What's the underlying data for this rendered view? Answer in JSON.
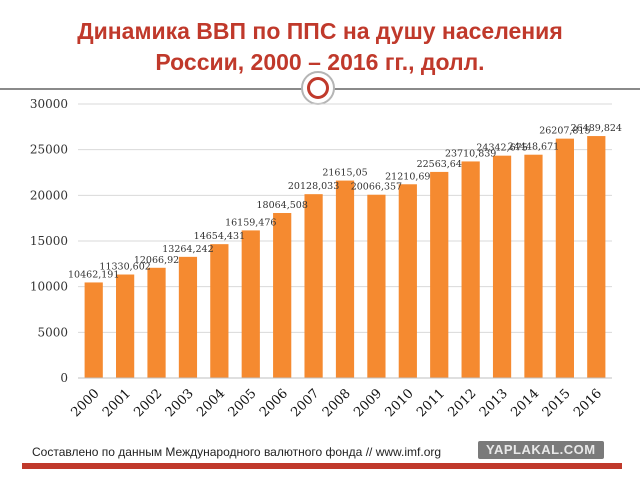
{
  "title": {
    "line1": "Динамика ВВП по ППС на душу населения",
    "line2": "России, 2000 – 2016 гг., долл."
  },
  "footer": {
    "source": "Составлено по данным Международного валютного фонда // www.imf.org",
    "watermark": "YAPLAKAL.COM"
  },
  "colors": {
    "bar": "#f58a30",
    "title": "#c0392b",
    "accent_bar": "#c0392b"
  },
  "chart_data": {
    "type": "bar",
    "title": "Динамика ВВП по ППС на душу населения России, 2000 – 2016 гг., долл.",
    "xlabel": "",
    "ylabel": "",
    "ylim": [
      0,
      30000
    ],
    "yticks": [
      "0",
      "5000",
      "10000",
      "15000",
      "20000",
      "25000",
      "30000"
    ],
    "grid": true,
    "categories": [
      "2000",
      "2001",
      "2002",
      "2003",
      "2004",
      "2005",
      "2006",
      "2007",
      "2008",
      "2009",
      "2010",
      "2011",
      "2012",
      "2013",
      "2014",
      "2015",
      "2016"
    ],
    "values": [
      10462.191,
      11330.602,
      12066.92,
      13264.242,
      14654.431,
      16159.476,
      18064.508,
      20128.033,
      21615.05,
      20066.357,
      21210.69,
      22563.64,
      23710.839,
      24342.675,
      24448.671,
      26207.815,
      26489.824
    ],
    "data_labels": [
      "10462,191",
      "11330,602",
      "12066,92",
      "13264,242",
      "14654,431",
      "16159,476",
      "18064,508",
      "20128,033",
      "21615,05",
      "20066,357",
      "21210,69",
      "22563,64",
      "23710,839",
      "24342,675",
      "24448,671",
      "26207,815",
      "26489,824"
    ]
  }
}
